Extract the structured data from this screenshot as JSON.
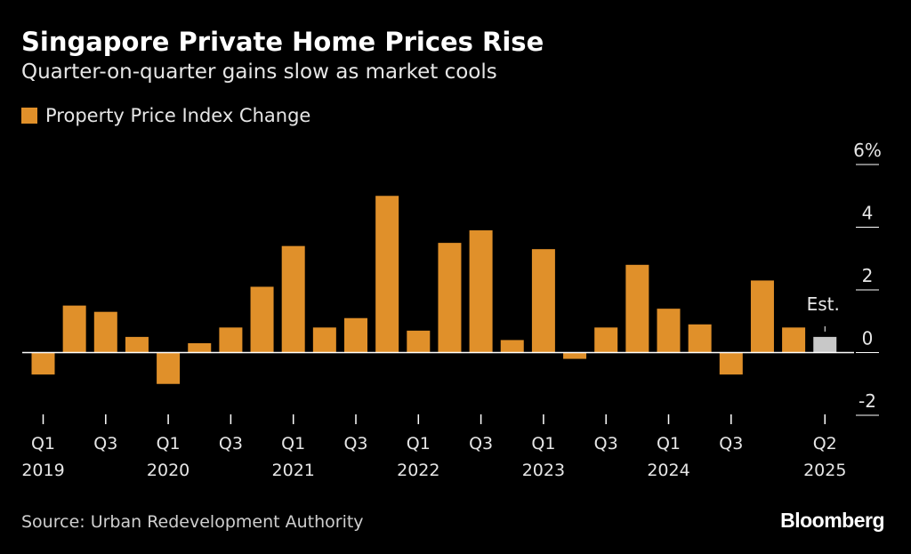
{
  "header": {
    "title": "Singapore Private Home Prices Rise",
    "subtitle": "Quarter-on-quarter gains slow as market cools"
  },
  "footer": {
    "source": "Source: Urban Redevelopment Authority",
    "brand": "Bloomberg"
  },
  "colors": {
    "background": "#000000",
    "bar": "#e0902a",
    "estimate_bar": "#c8c8c8",
    "axis": "#ffffff",
    "text": "#e6e6e6"
  },
  "chart_data": {
    "type": "bar",
    "title": "Singapore Private Home Prices Rise",
    "subtitle": "Quarter-on-quarter gains slow as market cools",
    "xlabel": "",
    "ylabel": "",
    "ylim": [
      -2,
      6
    ],
    "y_ticks": [
      6,
      4,
      2,
      0,
      -2
    ],
    "y_unit_suffix": "%",
    "grid": false,
    "legend": {
      "position": "top-left",
      "entries": [
        "Property Price Index Change"
      ]
    },
    "series": [
      {
        "name": "Property Price Index Change",
        "values": [
          -0.7,
          1.5,
          1.3,
          0.5,
          -1.0,
          0.3,
          0.8,
          2.1,
          3.4,
          0.8,
          1.1,
          5.0,
          0.7,
          3.5,
          3.9,
          0.4,
          3.3,
          -0.2,
          0.8,
          2.8,
          1.4,
          0.9,
          -0.7,
          2.3,
          0.8,
          0.5
        ]
      }
    ],
    "categories": [
      "Q1 2019",
      "Q2 2019",
      "Q3 2019",
      "Q4 2019",
      "Q1 2020",
      "Q2 2020",
      "Q3 2020",
      "Q4 2020",
      "Q1 2021",
      "Q2 2021",
      "Q3 2021",
      "Q4 2021",
      "Q1 2022",
      "Q2 2022",
      "Q3 2022",
      "Q4 2022",
      "Q1 2023",
      "Q2 2023",
      "Q3 2023",
      "Q4 2023",
      "Q1 2024",
      "Q2 2024",
      "Q3 2024",
      "Q4 2024",
      "Q1 2025",
      "Q2 2025"
    ],
    "estimate_index": 25,
    "annotations": [
      {
        "category": "Q2 2025",
        "text": "Est."
      }
    ],
    "x_tick_labels": [
      {
        "index": 0,
        "line1": "Q1",
        "line2": "2019"
      },
      {
        "index": 2,
        "line1": "Q3",
        "line2": ""
      },
      {
        "index": 4,
        "line1": "Q1",
        "line2": "2020"
      },
      {
        "index": 6,
        "line1": "Q3",
        "line2": ""
      },
      {
        "index": 8,
        "line1": "Q1",
        "line2": "2021"
      },
      {
        "index": 10,
        "line1": "Q3",
        "line2": ""
      },
      {
        "index": 12,
        "line1": "Q1",
        "line2": "2022"
      },
      {
        "index": 14,
        "line1": "Q3",
        "line2": ""
      },
      {
        "index": 16,
        "line1": "Q1",
        "line2": "2023"
      },
      {
        "index": 18,
        "line1": "Q3",
        "line2": ""
      },
      {
        "index": 20,
        "line1": "Q1",
        "line2": "2024"
      },
      {
        "index": 22,
        "line1": "Q3",
        "line2": ""
      },
      {
        "index": 25,
        "line1": "Q2",
        "line2": "2025"
      }
    ]
  }
}
